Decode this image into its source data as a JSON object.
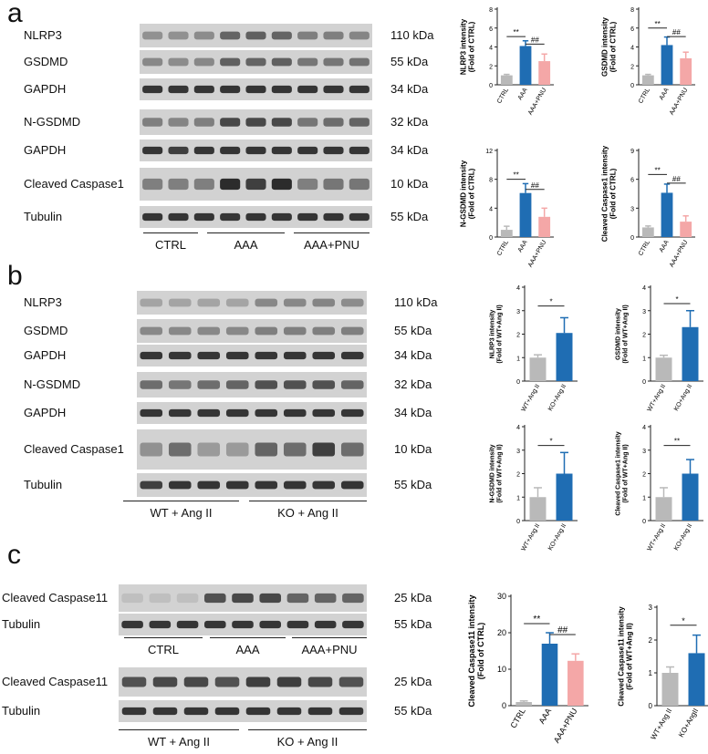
{
  "panels": {
    "a": {
      "letter": "a",
      "blots": [
        {
          "label": "NLRP3",
          "kda": "110 kDa",
          "intensity": [
            0.35,
            0.35,
            0.38,
            0.6,
            0.62,
            0.6,
            0.45,
            0.45,
            0.42
          ]
        },
        {
          "label": "GSDMD",
          "kda": "55 kDa",
          "intensity": [
            0.4,
            0.38,
            0.4,
            0.62,
            0.6,
            0.62,
            0.5,
            0.5,
            0.52
          ]
        },
        {
          "label": "GAPDH",
          "kda": "34 kDa",
          "intensity": [
            0.85,
            0.85,
            0.85,
            0.85,
            0.85,
            0.85,
            0.85,
            0.85,
            0.85
          ]
        },
        {
          "label": "N-GSDMD",
          "kda": "32 kDa",
          "intensity": [
            0.45,
            0.42,
            0.45,
            0.75,
            0.75,
            0.75,
            0.5,
            0.55,
            0.6
          ]
        },
        {
          "label": "GAPDH",
          "kda": "34 kDa",
          "intensity": [
            0.85,
            0.8,
            0.85,
            0.85,
            0.85,
            0.85,
            0.85,
            0.85,
            0.85
          ]
        },
        {
          "label": "Cleaved Caspase1",
          "kda": "10 kDa",
          "intensity": [
            0.45,
            0.45,
            0.45,
            0.9,
            0.8,
            0.9,
            0.45,
            0.5,
            0.5
          ]
        },
        {
          "label": "Tubulin",
          "kda": "55 kDa",
          "intensity": [
            0.85,
            0.85,
            0.85,
            0.85,
            0.85,
            0.85,
            0.85,
            0.85,
            0.85
          ]
        }
      ],
      "groups": [
        "CTRL",
        "AAA",
        "AAA+PNU"
      ]
    },
    "b": {
      "letter": "b",
      "blots": [
        {
          "label": "NLRP3",
          "kda": "110 kDa",
          "intensity": [
            0.25,
            0.25,
            0.25,
            0.25,
            0.4,
            0.4,
            0.42,
            0.38
          ]
        },
        {
          "label": "GSDMD",
          "kda": "55 kDa",
          "intensity": [
            0.4,
            0.4,
            0.4,
            0.4,
            0.45,
            0.45,
            0.45,
            0.45
          ]
        },
        {
          "label": "GAPDH",
          "kda": "34 kDa",
          "intensity": [
            0.85,
            0.85,
            0.85,
            0.85,
            0.85,
            0.85,
            0.85,
            0.85
          ]
        },
        {
          "label": "N-GSDMD",
          "kda": "32 kDa",
          "intensity": [
            0.55,
            0.5,
            0.55,
            0.6,
            0.7,
            0.7,
            0.7,
            0.6
          ]
        },
        {
          "label": "GAPDH",
          "kda": "34 kDa",
          "intensity": [
            0.85,
            0.85,
            0.85,
            0.85,
            0.85,
            0.85,
            0.85,
            0.85
          ]
        },
        {
          "label": "Cleaved Caspase1",
          "kda": "10 kDa",
          "intensity": [
            0.35,
            0.55,
            0.3,
            0.3,
            0.6,
            0.55,
            0.8,
            0.55
          ]
        },
        {
          "label": "Tubulin",
          "kda": "55 kDa",
          "intensity": [
            0.8,
            0.85,
            0.85,
            0.85,
            0.85,
            0.85,
            0.85,
            0.85
          ]
        }
      ],
      "groups": [
        "WT + Ang II",
        "KO + Ang II"
      ]
    },
    "c": {
      "letter": "c",
      "blots_top": [
        {
          "label": "Cleaved Caspase11",
          "kda": "25 kDa",
          "intensity": [
            0.1,
            0.1,
            0.1,
            0.7,
            0.75,
            0.75,
            0.6,
            0.6,
            0.6
          ]
        },
        {
          "label": "Tubulin",
          "kda": "55 kDa",
          "intensity": [
            0.85,
            0.85,
            0.85,
            0.85,
            0.85,
            0.85,
            0.85,
            0.85,
            0.85
          ]
        }
      ],
      "groups_top": [
        "CTRL",
        "AAA",
        "AAA+PNU"
      ],
      "blots_bottom": [
        {
          "label": "Cleaved Caspase11",
          "kda": "25 kDa",
          "intensity": [
            0.7,
            0.75,
            0.75,
            0.7,
            0.8,
            0.8,
            0.75,
            0.7
          ]
        },
        {
          "label": "Tubulin",
          "kda": "55 kDa",
          "intensity": [
            0.85,
            0.85,
            0.85,
            0.85,
            0.85,
            0.85,
            0.85,
            0.85
          ]
        }
      ],
      "groups_bottom": [
        "WT + Ang II",
        "KO + Ang II"
      ]
    }
  },
  "colors": {
    "ctrl": "#b9b9b9",
    "aaa": "#1f6db3",
    "pnu": "#f4a7a7",
    "band": "#1a1a1a",
    "blot_bg": "#d2d2d2"
  },
  "chart_data": [
    {
      "id": "a1",
      "type": "bar",
      "ylabel": "NLRP3 intensity\n(Fold of CTRL)",
      "categories": [
        "CTRL",
        "AAA",
        "AAA+PNU"
      ],
      "values": [
        1.0,
        4.1,
        2.5
      ],
      "errors": [
        0.1,
        0.55,
        0.75
      ],
      "ylim": [
        0,
        8
      ],
      "ticks": [
        0,
        2,
        4,
        6,
        8
      ],
      "sig": [
        {
          "from": 0,
          "to": 1,
          "text": "**",
          "y": 5.1
        },
        {
          "from": 1,
          "to": 2,
          "text": "##",
          "y": 4.3
        }
      ]
    },
    {
      "id": "a2",
      "type": "bar",
      "ylabel": "GSDMD intensity\n(Fold of CTRL)",
      "categories": [
        "CTRL",
        "AAA",
        "AAA+PNU"
      ],
      "values": [
        1.0,
        4.2,
        2.8
      ],
      "errors": [
        0.1,
        0.85,
        0.65
      ],
      "ylim": [
        0,
        8
      ],
      "ticks": [
        0,
        2,
        4,
        6,
        8
      ],
      "sig": [
        {
          "from": 0,
          "to": 1,
          "text": "**",
          "y": 6.0
        },
        {
          "from": 1,
          "to": 2,
          "text": "##",
          "y": 5.1
        }
      ]
    },
    {
      "id": "a3",
      "type": "bar",
      "ylabel": "N-GSDMD intensity\n(Fold of CTRL)",
      "categories": [
        "CTRL",
        "AAA",
        "AAA+PNU"
      ],
      "values": [
        1.0,
        6.1,
        2.8
      ],
      "errors": [
        0.5,
        1.3,
        1.2
      ],
      "ylim": [
        0,
        12
      ],
      "ticks": [
        0,
        4,
        8,
        12
      ],
      "sig": [
        {
          "from": 0,
          "to": 1,
          "text": "**",
          "y": 8.0
        },
        {
          "from": 1,
          "to": 2,
          "text": "##",
          "y": 6.6
        }
      ]
    },
    {
      "id": "a4",
      "type": "bar",
      "ylabel": "Cleaved Caspase1 intensity\n(Fold of CTRL)",
      "categories": [
        "CTRL",
        "AAA",
        "AAA+PNU"
      ],
      "values": [
        1.0,
        4.6,
        1.6
      ],
      "errors": [
        0.15,
        0.9,
        0.6
      ],
      "ylim": [
        0,
        9
      ],
      "ticks": [
        0,
        3,
        6,
        9
      ],
      "sig": [
        {
          "from": 0,
          "to": 1,
          "text": "**",
          "y": 6.5
        },
        {
          "from": 1,
          "to": 2,
          "text": "##",
          "y": 5.6
        }
      ]
    },
    {
      "id": "b1",
      "type": "bar",
      "ylabel": "NLRP3 intensity\n(Fold of WT+Ang II)",
      "categories": [
        "WT+Ang II",
        "KO+Ang II"
      ],
      "values": [
        1.0,
        2.05
      ],
      "errors": [
        0.12,
        0.65
      ],
      "ylim": [
        0,
        4
      ],
      "ticks": [
        0,
        1,
        2,
        3,
        4
      ],
      "sig": [
        {
          "from": 0,
          "to": 1,
          "text": "*",
          "y": 3.2
        }
      ]
    },
    {
      "id": "b2",
      "type": "bar",
      "ylabel": "GSDMD intensity\n(Fold of WT+Ang II)",
      "categories": [
        "WT+Ang II",
        "KO+Ang II"
      ],
      "values": [
        1.0,
        2.3
      ],
      "errors": [
        0.1,
        0.7
      ],
      "ylim": [
        0,
        4
      ],
      "ticks": [
        0,
        1,
        2,
        3,
        4
      ],
      "sig": [
        {
          "from": 0,
          "to": 1,
          "text": "*",
          "y": 3.3
        }
      ]
    },
    {
      "id": "b3",
      "type": "bar",
      "ylabel": "N-GSDMD intensity\n(Fold of WT+Ang II)",
      "categories": [
        "WT+Ang II",
        "KO+Ang II"
      ],
      "values": [
        1.0,
        2.0
      ],
      "errors": [
        0.4,
        0.9
      ],
      "ylim": [
        0,
        4
      ],
      "ticks": [
        0,
        1,
        2,
        3,
        4
      ],
      "sig": [
        {
          "from": 0,
          "to": 1,
          "text": "*",
          "y": 3.2
        }
      ]
    },
    {
      "id": "b4",
      "type": "bar",
      "ylabel": "Cleaved Caspase1 intensity\n(Fold of WT+Ang II)",
      "categories": [
        "WT+Ang II",
        "KO+Ang II"
      ],
      "values": [
        1.0,
        2.0
      ],
      "errors": [
        0.4,
        0.6
      ],
      "ylim": [
        0,
        4
      ],
      "ticks": [
        0,
        1,
        2,
        3,
        4
      ],
      "sig": [
        {
          "from": 0,
          "to": 1,
          "text": "**",
          "y": 3.2
        }
      ]
    },
    {
      "id": "c1",
      "type": "bar",
      "ylabel": "Cleaved Caspase11 intensity\n(Fold of CTRL)",
      "categories": [
        "CTRL",
        "AAA",
        "AAA+PNU"
      ],
      "values": [
        1.0,
        17.0,
        12.3
      ],
      "errors": [
        0.3,
        3.0,
        1.9
      ],
      "ylim": [
        0,
        30
      ],
      "ticks": [
        0,
        10,
        20,
        30
      ],
      "sig": [
        {
          "from": 0,
          "to": 1,
          "text": "**",
          "y": 22.5
        },
        {
          "from": 1,
          "to": 2,
          "text": "##",
          "y": 19.5
        }
      ]
    },
    {
      "id": "c2",
      "type": "bar",
      "ylabel": "Cleaved Caspase11 intensity\n(Fold of WT+Ang II)",
      "categories": [
        "WT+Ang II",
        "KO+AngII"
      ],
      "values": [
        1.0,
        1.6
      ],
      "errors": [
        0.18,
        0.55
      ],
      "ylim": [
        0,
        3
      ],
      "ticks": [
        0,
        1,
        2,
        3
      ],
      "sig": [
        {
          "from": 0,
          "to": 1,
          "text": "*",
          "y": 2.45
        }
      ]
    }
  ]
}
